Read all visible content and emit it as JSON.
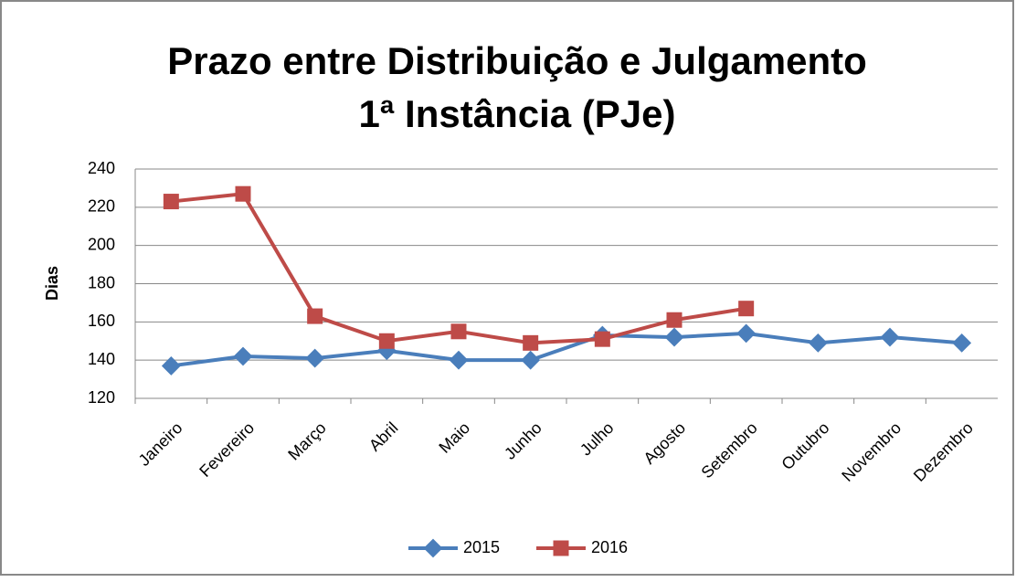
{
  "chart_data": {
    "type": "line",
    "title": "Prazo entre Distribuição e Julgamento",
    "subtitle": "1ª Instância (PJe)",
    "y_label": "Dias",
    "categories": [
      "Janeiro",
      "Fevereiro",
      "Março",
      "Abril",
      "Maio",
      "Junho",
      "Julho",
      "Agosto",
      "Setembro",
      "Outubro",
      "Novembro",
      "Dezembro"
    ],
    "series": [
      {
        "name": "2015",
        "color": "#4a7ebb",
        "marker": "diamond",
        "values": [
          137,
          142,
          141,
          145,
          140,
          140,
          153,
          152,
          154,
          149,
          152,
          149
        ]
      },
      {
        "name": "2016",
        "color": "#be4b48",
        "marker": "square",
        "values": [
          223,
          227,
          163,
          150,
          155,
          149,
          151,
          161,
          167,
          null,
          null,
          null
        ]
      }
    ],
    "ylim": [
      120,
      240
    ],
    "yticks": [
      120,
      140,
      160,
      180,
      200,
      220,
      240
    ],
    "grid": true,
    "legend": "bottom"
  }
}
